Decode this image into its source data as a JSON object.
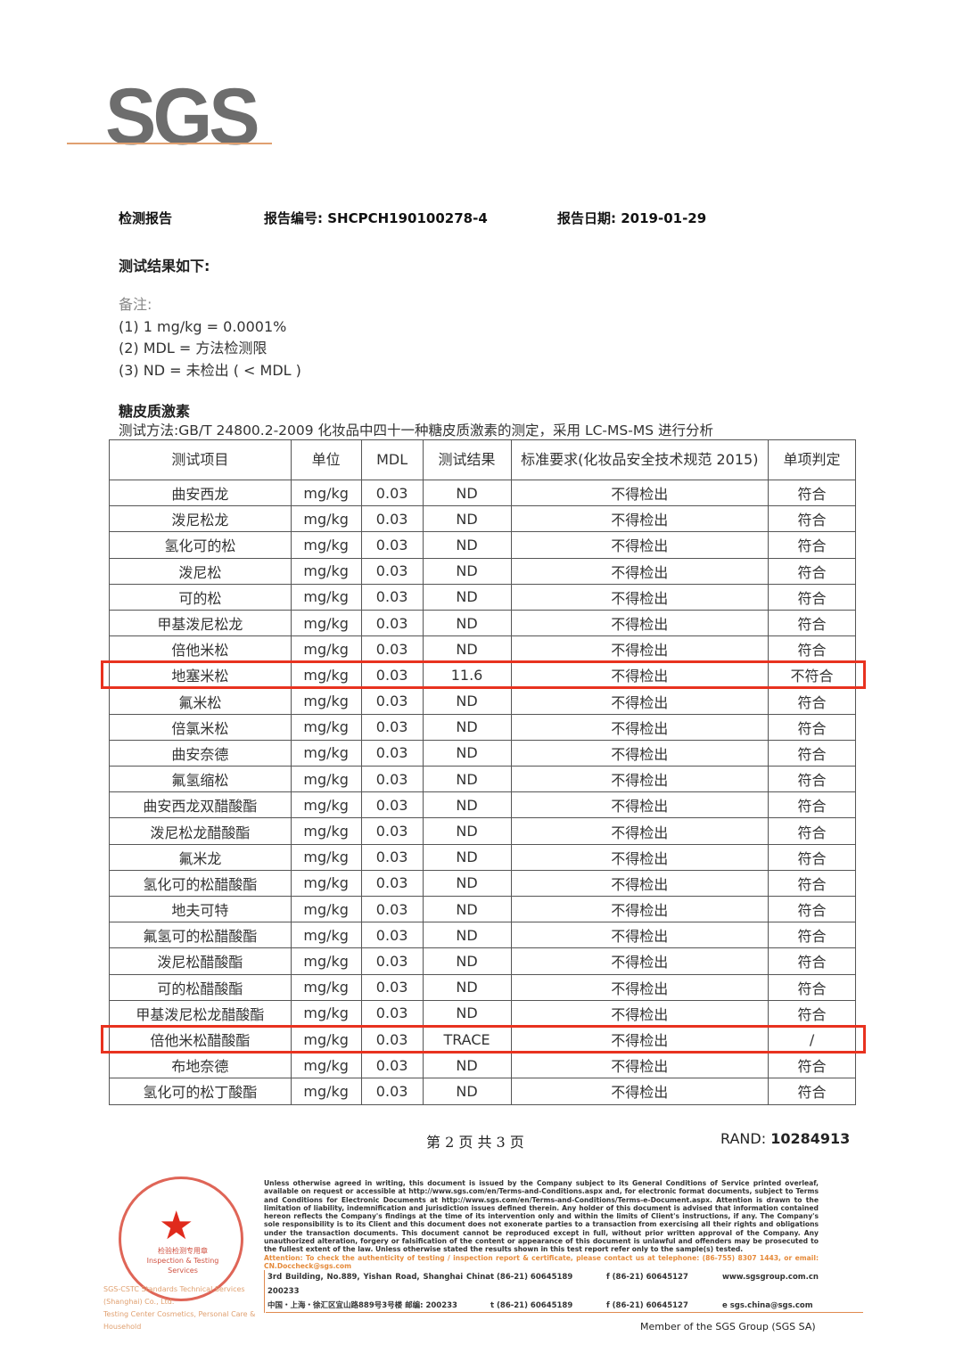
{
  "logo": "SGS",
  "header": {
    "report_label": "检测报告",
    "report_no_label": "报告编号:",
    "report_no": "SHCPCH190100278-4",
    "date_label": "报告日期:",
    "date": "2019-01-29"
  },
  "results_title": "测试结果如下:",
  "notes": {
    "title": "备注:",
    "items": [
      "(1) 1 mg/kg = 0.0001%",
      "(2) MDL = 方法检测限",
      "(3) ND = 未检出 ( < MDL )"
    ]
  },
  "section": {
    "title": "糖皮质激素",
    "method": "测试方法:GB/T 24800.2-2009 化妆品中四十一种糖皮质激素的测定，采用 LC-MS-MS 进行分析"
  },
  "table": {
    "headers": [
      "测试项目",
      "单位",
      "MDL",
      "测试结果",
      "标准要求(化妆品安全技术规范 2015)",
      "单项判定"
    ],
    "rows": [
      [
        "曲安西龙",
        "mg/kg",
        "0.03",
        "ND",
        "不得检出",
        "符合"
      ],
      [
        "泼尼松龙",
        "mg/kg",
        "0.03",
        "ND",
        "不得检出",
        "符合"
      ],
      [
        "氢化可的松",
        "mg/kg",
        "0.03",
        "ND",
        "不得检出",
        "符合"
      ],
      [
        "泼尼松",
        "mg/kg",
        "0.03",
        "ND",
        "不得检出",
        "符合"
      ],
      [
        "可的松",
        "mg/kg",
        "0.03",
        "ND",
        "不得检出",
        "符合"
      ],
      [
        "甲基泼尼松龙",
        "mg/kg",
        "0.03",
        "ND",
        "不得检出",
        "符合"
      ],
      [
        "倍他米松",
        "mg/kg",
        "0.03",
        "ND",
        "不得检出",
        "符合"
      ],
      [
        "地塞米松",
        "mg/kg",
        "0.03",
        "11.6",
        "不得检出",
        "不符合"
      ],
      [
        "氟米松",
        "mg/kg",
        "0.03",
        "ND",
        "不得检出",
        "符合"
      ],
      [
        "倍氯米松",
        "mg/kg",
        "0.03",
        "ND",
        "不得检出",
        "符合"
      ],
      [
        "曲安奈德",
        "mg/kg",
        "0.03",
        "ND",
        "不得检出",
        "符合"
      ],
      [
        "氟氢缩松",
        "mg/kg",
        "0.03",
        "ND",
        "不得检出",
        "符合"
      ],
      [
        "曲安西龙双醋酸酯",
        "mg/kg",
        "0.03",
        "ND",
        "不得检出",
        "符合"
      ],
      [
        "泼尼松龙醋酸酯",
        "mg/kg",
        "0.03",
        "ND",
        "不得检出",
        "符合"
      ],
      [
        "氟米龙",
        "mg/kg",
        "0.03",
        "ND",
        "不得检出",
        "符合"
      ],
      [
        "氢化可的松醋酸酯",
        "mg/kg",
        "0.03",
        "ND",
        "不得检出",
        "符合"
      ],
      [
        "地夫可特",
        "mg/kg",
        "0.03",
        "ND",
        "不得检出",
        "符合"
      ],
      [
        "氟氢可的松醋酸酯",
        "mg/kg",
        "0.03",
        "ND",
        "不得检出",
        "符合"
      ],
      [
        "泼尼松醋酸酯",
        "mg/kg",
        "0.03",
        "ND",
        "不得检出",
        "符合"
      ],
      [
        "可的松醋酸酯",
        "mg/kg",
        "0.03",
        "ND",
        "不得检出",
        "符合"
      ],
      [
        "甲基泼尼松龙醋酸酯",
        "mg/kg",
        "0.03",
        "ND",
        "不得检出",
        "符合"
      ],
      [
        "倍他米松醋酸酯",
        "mg/kg",
        "0.03",
        "TRACE",
        "不得检出",
        "/"
      ],
      [
        "布地奈德",
        "mg/kg",
        "0.03",
        "ND",
        "不得检出",
        "符合"
      ],
      [
        "氢化可的松丁酸酯",
        "mg/kg",
        "0.03",
        "ND",
        "不得检出",
        "符合"
      ]
    ],
    "highlighted_rows": [
      8,
      22
    ],
    "highlight_color": "#e8321f"
  },
  "footer": {
    "page": "第 2 页 共 3 页",
    "rand_label": "RAND:",
    "rand": "10284913",
    "disclaimer": "Unless otherwise agreed in writing, this document is issued by the Company subject to its General Conditions of Service printed overleaf, available on request or accessible at http://www.sgs.com/en/Terms-and-Conditions.aspx and, for electronic format documents, subject to Terms and Conditions for Electronic Documents at http://www.sgs.com/en/Terms-and-Conditions/Terms-e-Document.aspx. Attention is drawn to the limitation of liability, indemnification and jurisdiction issues defined therein. Any holder of this document is advised that information contained hereon reflects the Company's findings at the time of its intervention only and within the limits of Client's instructions, if any. The Company's sole responsibility is to its Client and this document does not exonerate parties to a transaction from exercising all their rights and obligations under the transaction documents. This document cannot be reproduced except in full, without prior written approval of the Company. Any unauthorized alteration, forgery or falsification of the content or appearance of this document is unlawful and offenders may be prosecuted to the fullest extent of the law. Unless otherwise stated the results shown in this test report refer only to the sample(s) tested.",
    "attention": "Attention: To check the authenticity of testing / inspection report & certificate, please contact us at telephone: (86-755) 8307 1443, or email: CN.Doccheck@sgs.com",
    "address_en": "3rd Building, No.889, Yishan Road, Shanghai China 200233",
    "address_cn": "中国・上海・徐汇区宜山路889号3号楼 邮编: 200233",
    "tel1": "t (86-21) 60645189",
    "fax1": "f (86-21) 60645127",
    "web": "www.sgsgroup.com.cn",
    "tel2": "t (86-21) 60645189",
    "fax2": "f (86-21) 60645127",
    "email": "e sgs.china@sgs.com",
    "member": "Member of the SGS Group (SGS SA)"
  },
  "stamp": {
    "label": "检验检测专用章",
    "label_en": "Inspection & Testing Services",
    "side1": "SGS-CSTC Standards Technical Services (Shanghai) Co., Ltd.",
    "side2": "Testing Center Cosmetics, Personal Care & Household"
  }
}
